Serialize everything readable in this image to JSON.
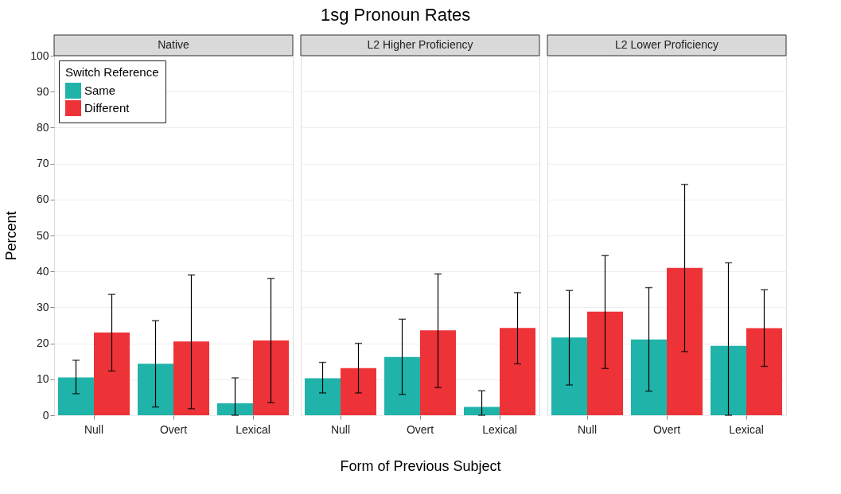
{
  "chart_data": [
    {
      "type": "bar",
      "subtitle": "Native",
      "ylabel": "Percent",
      "categories": [
        "Null",
        "Overt",
        "Lexical"
      ],
      "ylim": [
        0,
        100
      ],
      "yticks": [
        0,
        10,
        20,
        30,
        40,
        50,
        60,
        70,
        80,
        90,
        100
      ],
      "grid": "y",
      "legend": "top left",
      "legend_title": "Switch Reference",
      "series": [
        {
          "name": "Same",
          "color": "#1fb3a9",
          "values": [
            10.5,
            14.3,
            3.3
          ],
          "errors": [
            [
              6,
              15.3
            ],
            [
              2.3,
              26.3
            ],
            [
              0,
              10.4
            ]
          ]
        },
        {
          "name": "Different",
          "color": "#ee3338",
          "values": [
            23,
            20.5,
            20.8
          ],
          "errors": [
            [
              12.3,
              33.6
            ],
            [
              1.8,
              39
            ],
            [
              3.5,
              38
            ]
          ]
        }
      ]
    },
    {
      "type": "bar",
      "title": "1sg Pronoun Rates",
      "subtitle": "L2 Higher Proficiency",
      "xlabel": "Form of Previous Subject",
      "categories": [
        "Null",
        "Overt",
        "Lexical"
      ],
      "ylim": [
        0,
        100
      ],
      "yticks": [
        0,
        10,
        20,
        30,
        40,
        50,
        60,
        70,
        80,
        90,
        100
      ],
      "grid": "y",
      "tick_labels": "x",
      "series": [
        {
          "color": "#1fb3a9",
          "values": [
            10.3,
            16.2,
            2.3
          ],
          "errors": [
            [
              6.2,
              14.7
            ],
            [
              5.8,
              26.7
            ],
            [
              0,
              6.8
            ]
          ]
        },
        {
          "color": "#ee3338",
          "values": [
            13.1,
            23.6,
            24.3
          ],
          "errors": [
            [
              6.2,
              20
            ],
            [
              7.7,
              39.3
            ],
            [
              14.3,
              34.1
            ]
          ]
        }
      ]
    },
    {
      "type": "bar",
      "subtitle": "L2 Lower Proficiency",
      "categories": [
        "Null",
        "Overt",
        "Lexical"
      ],
      "ylim": [
        0,
        100
      ],
      "yticks": [
        0,
        10,
        20,
        30,
        40,
        50,
        60,
        70,
        80,
        90,
        100
      ],
      "grid": "y",
      "tick_labels": "x",
      "series": [
        {
          "color": "#1fb3a9",
          "values": [
            21.6,
            21.1,
            19.3
          ],
          "errors": [
            [
              8.4,
              34.7
            ],
            [
              6.7,
              35.5
            ],
            [
              0,
              42.4
            ]
          ]
        },
        {
          "color": "#ee3338",
          "values": [
            28.8,
            41,
            24.2
          ],
          "errors": [
            [
              13,
              44.4
            ],
            [
              17.7,
              64.2
            ],
            [
              13.6,
              34.9
            ]
          ]
        }
      ]
    }
  ]
}
